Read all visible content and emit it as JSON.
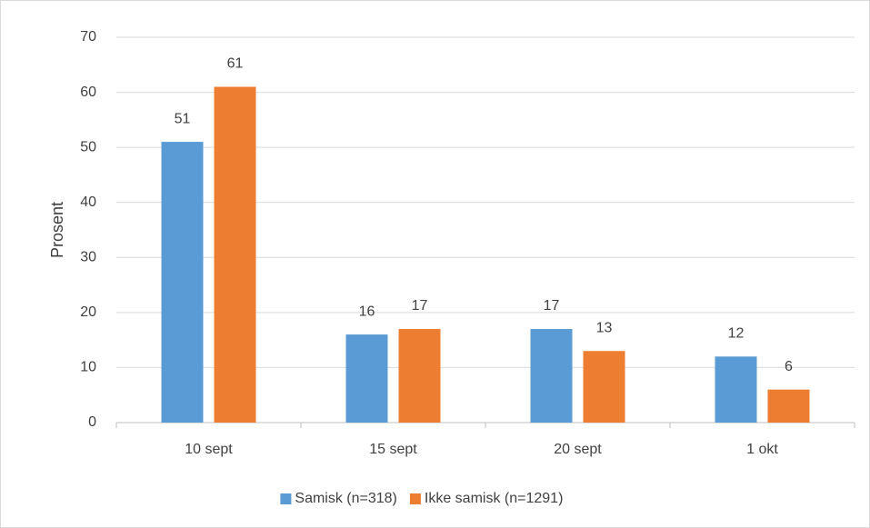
{
  "chart_data": {
    "type": "bar",
    "y_label": "Prosent",
    "categories": [
      "10 sept",
      "15 sept",
      "20 sept",
      "1 okt"
    ],
    "series": [
      {
        "name": "Samisk (n=318)",
        "color": "#5b9bd5",
        "values": [
          51,
          16,
          17,
          12
        ]
      },
      {
        "name": "Ikke samisk (n=1291)",
        "color": "#ed7d31",
        "values": [
          61,
          17,
          13,
          6
        ]
      }
    ],
    "ylim": [
      0,
      70
    ],
    "yticks": [
      0,
      10,
      20,
      30,
      40,
      50,
      60,
      70
    ],
    "grid": true,
    "legend": "bottom"
  }
}
